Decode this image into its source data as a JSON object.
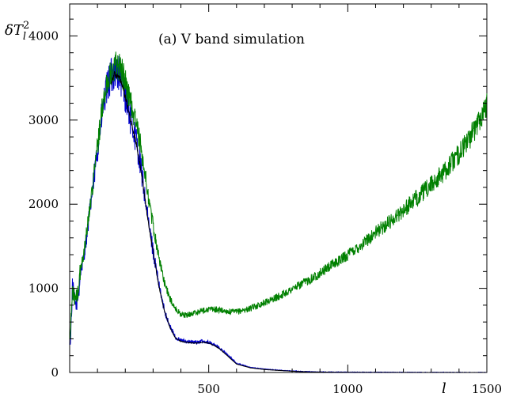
{
  "chart_data": {
    "type": "line",
    "title": "(a) V band simulation",
    "ylabel": "δT",
    "ylabel_sub": "l",
    "ylabel_sup": "2",
    "xlabel": "l",
    "xlim": [
      0,
      1500
    ],
    "ylim": [
      0,
      4000
    ],
    "x_ticks": [
      500,
      1000,
      1500
    ],
    "y_ticks": [
      0,
      1000,
      2000,
      3000,
      4000
    ],
    "grid": false,
    "legend": "none",
    "series": [
      {
        "color": "#0000cc",
        "noise": 0.065,
        "x": [
          2,
          10,
          20,
          30,
          40,
          50,
          60,
          80,
          100,
          120,
          140,
          160,
          180,
          200,
          220,
          240,
          260,
          280,
          300,
          320,
          340,
          360,
          380,
          400,
          420,
          440,
          460,
          480,
          500,
          520,
          540,
          560,
          580,
          600,
          650,
          700,
          750,
          800,
          850,
          900,
          1000,
          1100,
          1200,
          1300,
          1400,
          1500
        ],
        "y": [
          300,
          1000,
          800,
          900,
          1200,
          1350,
          1600,
          2100,
          2650,
          3150,
          3450,
          3600,
          3550,
          3300,
          3000,
          2750,
          2350,
          1850,
          1450,
          1050,
          750,
          550,
          420,
          380,
          370,
          360,
          360,
          370,
          360,
          330,
          290,
          230,
          170,
          110,
          60,
          40,
          28,
          18,
          10,
          6,
          3,
          2,
          1,
          1,
          0,
          0
        ]
      },
      {
        "color": "#000000",
        "noise": 0.01,
        "x": [
          150,
          160,
          180,
          200,
          220,
          240,
          260,
          280,
          300,
          320,
          340,
          360,
          380,
          400,
          420,
          440,
          460,
          480,
          500,
          520,
          540,
          560,
          580,
          600,
          650,
          700,
          750,
          800,
          850,
          900,
          1000,
          1100,
          1200,
          1300,
          1400,
          1500
        ],
        "y": [
          3450,
          3550,
          3500,
          3280,
          2980,
          2720,
          2330,
          1840,
          1440,
          1040,
          740,
          540,
          410,
          370,
          360,
          350,
          350,
          360,
          350,
          320,
          280,
          220,
          160,
          100,
          55,
          35,
          25,
          15,
          8,
          5,
          2,
          1,
          0,
          0,
          0,
          0
        ]
      },
      {
        "color": "#008000",
        "noise": 0.05,
        "x": [
          2,
          10,
          20,
          30,
          40,
          50,
          60,
          80,
          100,
          120,
          140,
          160,
          180,
          200,
          220,
          240,
          260,
          280,
          300,
          320,
          340,
          360,
          380,
          400,
          420,
          440,
          460,
          480,
          500,
          520,
          540,
          560,
          580,
          600,
          650,
          700,
          750,
          800,
          850,
          900,
          950,
          1000,
          1050,
          1100,
          1150,
          1200,
          1250,
          1300,
          1350,
          1400,
          1450,
          1500
        ],
        "y": [
          400,
          1000,
          850,
          950,
          1250,
          1400,
          1650,
          2150,
          2700,
          3200,
          3500,
          3650,
          3650,
          3450,
          3200,
          2950,
          2600,
          2150,
          1750,
          1380,
          1080,
          880,
          760,
          690,
          680,
          700,
          720,
          740,
          750,
          750,
          740,
          730,
          720,
          720,
          760,
          830,
          900,
          990,
          1080,
          1180,
          1290,
          1400,
          1520,
          1660,
          1790,
          1930,
          2080,
          2230,
          2400,
          2600,
          2850,
          3200
        ]
      }
    ]
  }
}
